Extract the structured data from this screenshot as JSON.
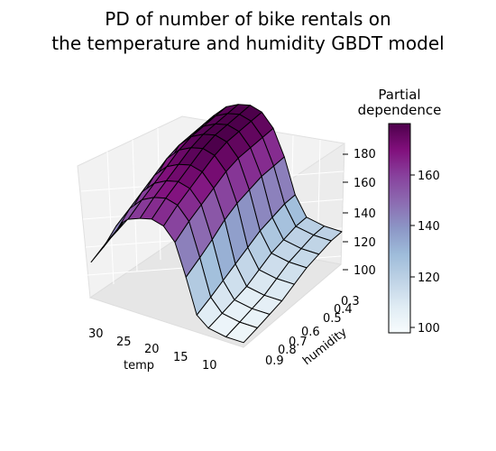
{
  "title": [
    "PD of number of bike rentals on",
    "the temperature and humidity GBDT model"
  ],
  "colorbar": {
    "title": [
      "Partial",
      "dependence"
    ],
    "ticks": [
      "160",
      "140",
      "120",
      "100"
    ],
    "range": [
      97,
      178
    ]
  },
  "chart_data": {
    "type": "surface",
    "title": "PD of number of bike rentals on the temperature and humidity GBDT model",
    "xlabel": "temp",
    "ylabel": "humidity",
    "zlabel": "",
    "colormap": "BuPu",
    "x_ticks": [
      "30",
      "25",
      "20",
      "15",
      "10"
    ],
    "y_ticks": [
      "0.3",
      "0.4",
      "0.5",
      "0.6",
      "0.7",
      "0.8",
      "0.9"
    ],
    "z_ticks": [
      "180",
      "160",
      "140",
      "120",
      "100"
    ],
    "xlim": [
      6,
      32
    ],
    "ylim": [
      0.28,
      0.92
    ],
    "zlim": [
      97,
      182
    ],
    "temp": [
      6,
      9,
      12,
      14,
      16,
      18,
      20,
      22,
      24,
      26,
      28,
      30,
      32
    ],
    "humidity": [
      0.92,
      0.83,
      0.75,
      0.67,
      0.59,
      0.51,
      0.43,
      0.35,
      0.28
    ],
    "z": [
      [
        100,
        100,
        102,
        108,
        130,
        150,
        158,
        160,
        158,
        155,
        148,
        132,
        120
      ],
      [
        102,
        102,
        104,
        112,
        135,
        156,
        164,
        166,
        164,
        160,
        152,
        136,
        124
      ],
      [
        104,
        104,
        106,
        116,
        140,
        160,
        168,
        170,
        168,
        164,
        156,
        140,
        126
      ],
      [
        106,
        106,
        108,
        120,
        146,
        164,
        172,
        174,
        172,
        168,
        160,
        144,
        128
      ],
      [
        110,
        110,
        112,
        124,
        150,
        168,
        176,
        178,
        176,
        172,
        164,
        148,
        130
      ],
      [
        114,
        114,
        116,
        128,
        152,
        170,
        178,
        180,
        178,
        174,
        166,
        150,
        132
      ],
      [
        116,
        116,
        118,
        130,
        154,
        170,
        178,
        180,
        178,
        174,
        166,
        150,
        132
      ],
      [
        118,
        118,
        120,
        132,
        154,
        170,
        178,
        180,
        178,
        174,
        166,
        150,
        132
      ],
      [
        118,
        118,
        120,
        132,
        154,
        170,
        178,
        180,
        178,
        174,
        166,
        150,
        132
      ]
    ]
  }
}
